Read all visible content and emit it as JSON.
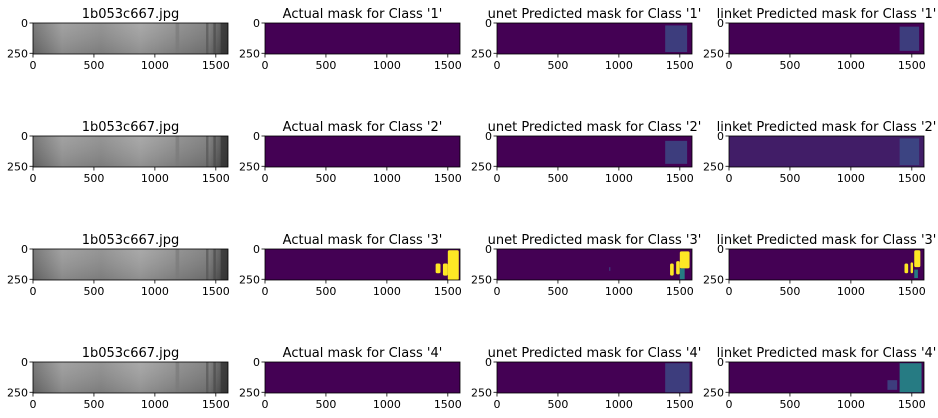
{
  "figure": {
    "rows": 4,
    "cols": 4,
    "colors": {
      "mask_bg": "#440154",
      "mask_fg": "#fde725",
      "mask_faint": "#3b528b",
      "mask_mid": "#21918c",
      "steel_dark": "#5a5a5a",
      "steel_light": "#a8a8a8"
    }
  },
  "chart_data": [
    {
      "type": "heatmap",
      "row": 0,
      "col": 0,
      "kind": "image",
      "title": "1b053c667.jpg",
      "xticks": [
        0,
        500,
        1000,
        1500
      ],
      "yticks": [
        0,
        250
      ],
      "xlim": [
        0,
        1600
      ],
      "ylim": [
        256,
        0
      ],
      "regions": []
    },
    {
      "type": "heatmap",
      "row": 0,
      "col": 1,
      "kind": "mask",
      "title": "Actual mask for Class '1'",
      "xticks": [
        0,
        500,
        1000,
        1500
      ],
      "yticks": [
        0,
        250
      ],
      "xlim": [
        0,
        1600
      ],
      "ylim": [
        256,
        0
      ],
      "regions": []
    },
    {
      "type": "heatmap",
      "row": 0,
      "col": 2,
      "kind": "mask",
      "title": "unet Predicted mask for Class '1'",
      "xticks": [
        0,
        500,
        1000,
        1500
      ],
      "yticks": [
        0,
        250
      ],
      "xlim": [
        0,
        1600
      ],
      "ylim": [
        256,
        0
      ],
      "regions": [
        {
          "x0": 1380,
          "x1": 1560,
          "y0": 20,
          "y1": 240,
          "level": "faint"
        }
      ]
    },
    {
      "type": "heatmap",
      "row": 0,
      "col": 3,
      "kind": "mask",
      "title": "linket Predicted mask for Class '1'",
      "xticks": [
        0,
        500,
        1000,
        1500
      ],
      "yticks": [
        0,
        250
      ],
      "xlim": [
        0,
        1600
      ],
      "ylim": [
        256,
        0
      ],
      "regions": [
        {
          "x0": 1400,
          "x1": 1560,
          "y0": 30,
          "y1": 230,
          "level": "faint"
        }
      ]
    },
    {
      "type": "heatmap",
      "row": 1,
      "col": 0,
      "kind": "image",
      "title": "1b053c667.jpg",
      "xticks": [
        0,
        500,
        1000,
        1500
      ],
      "yticks": [
        0,
        250
      ],
      "xlim": [
        0,
        1600
      ],
      "ylim": [
        256,
        0
      ],
      "regions": []
    },
    {
      "type": "heatmap",
      "row": 1,
      "col": 1,
      "kind": "mask",
      "title": "Actual mask for Class '2'",
      "xticks": [
        0,
        500,
        1000,
        1500
      ],
      "yticks": [
        0,
        250
      ],
      "xlim": [
        0,
        1600
      ],
      "ylim": [
        256,
        0
      ],
      "regions": []
    },
    {
      "type": "heatmap",
      "row": 1,
      "col": 2,
      "kind": "mask",
      "title": "unet Predicted mask for Class '2'",
      "xticks": [
        0,
        500,
        1000,
        1500
      ],
      "yticks": [
        0,
        250
      ],
      "xlim": [
        0,
        1600
      ],
      "ylim": [
        256,
        0
      ],
      "regions": [
        {
          "x0": 1380,
          "x1": 1560,
          "y0": 40,
          "y1": 230,
          "level": "faint"
        }
      ]
    },
    {
      "type": "heatmap",
      "row": 1,
      "col": 3,
      "kind": "mask",
      "title": "linket Predicted mask for Class '2'",
      "xticks": [
        0,
        500,
        1000,
        1500
      ],
      "yticks": [
        0,
        250
      ],
      "xlim": [
        0,
        1600
      ],
      "ylim": [
        256,
        0
      ],
      "regions": [
        {
          "x0": 0,
          "x1": 1600,
          "y0": 0,
          "y1": 256,
          "level": "faint_wide"
        },
        {
          "x0": 1400,
          "x1": 1560,
          "y0": 20,
          "y1": 240,
          "level": "faint"
        }
      ]
    },
    {
      "type": "heatmap",
      "row": 2,
      "col": 0,
      "kind": "image",
      "title": "1b053c667.jpg",
      "xticks": [
        0,
        500,
        1000,
        1500
      ],
      "yticks": [
        0,
        250
      ],
      "xlim": [
        0,
        1600
      ],
      "ylim": [
        256,
        0
      ],
      "regions": []
    },
    {
      "type": "heatmap",
      "row": 2,
      "col": 1,
      "kind": "mask",
      "title": "Actual mask for Class '3'",
      "xticks": [
        0,
        500,
        1000,
        1500
      ],
      "yticks": [
        0,
        250
      ],
      "xlim": [
        0,
        1600
      ],
      "ylim": [
        256,
        0
      ],
      "regions": [
        {
          "x0": 1400,
          "x1": 1440,
          "y0": 120,
          "y1": 200,
          "level": "full"
        },
        {
          "x0": 1460,
          "x1": 1500,
          "y0": 120,
          "y1": 220,
          "level": "full"
        },
        {
          "x0": 1500,
          "x1": 1590,
          "y0": 10,
          "y1": 256,
          "level": "full"
        }
      ]
    },
    {
      "type": "heatmap",
      "row": 2,
      "col": 2,
      "kind": "mask",
      "title": "unet Predicted mask for Class '3'",
      "xticks": [
        0,
        500,
        1000,
        1500
      ],
      "yticks": [
        0,
        250
      ],
      "xlim": [
        0,
        1600
      ],
      "ylim": [
        256,
        0
      ],
      "regions": [
        {
          "x0": 920,
          "x1": 930,
          "y0": 150,
          "y1": 180,
          "level": "faint"
        },
        {
          "x0": 1420,
          "x1": 1450,
          "y0": 120,
          "y1": 220,
          "level": "full"
        },
        {
          "x0": 1470,
          "x1": 1500,
          "y0": 100,
          "y1": 210,
          "level": "full"
        },
        {
          "x0": 1500,
          "x1": 1580,
          "y0": 20,
          "y1": 160,
          "level": "full"
        },
        {
          "x0": 1500,
          "x1": 1540,
          "y0": 160,
          "y1": 250,
          "level": "mid"
        }
      ]
    },
    {
      "type": "heatmap",
      "row": 2,
      "col": 3,
      "kind": "mask",
      "title": "linket Predicted mask for Class '3'",
      "xticks": [
        0,
        500,
        1000,
        1500
      ],
      "yticks": [
        0,
        250
      ],
      "xlim": [
        0,
        1600
      ],
      "ylim": [
        256,
        0
      ],
      "regions": [
        {
          "x0": 1440,
          "x1": 1470,
          "y0": 120,
          "y1": 200,
          "level": "full"
        },
        {
          "x0": 1490,
          "x1": 1510,
          "y0": 110,
          "y1": 200,
          "level": "full"
        },
        {
          "x0": 1520,
          "x1": 1570,
          "y0": 10,
          "y1": 150,
          "level": "full"
        },
        {
          "x0": 1520,
          "x1": 1550,
          "y0": 170,
          "y1": 240,
          "level": "mid"
        }
      ]
    },
    {
      "type": "heatmap",
      "row": 3,
      "col": 0,
      "kind": "image",
      "title": "1b053c667.jpg",
      "xticks": [
        0,
        500,
        1000,
        1500
      ],
      "yticks": [
        0,
        250
      ],
      "xlim": [
        0,
        1600
      ],
      "ylim": [
        256,
        0
      ],
      "regions": []
    },
    {
      "type": "heatmap",
      "row": 3,
      "col": 1,
      "kind": "mask",
      "title": "Actual mask for Class '4'",
      "xticks": [
        0,
        500,
        1000,
        1500
      ],
      "yticks": [
        0,
        250
      ],
      "xlim": [
        0,
        1600
      ],
      "ylim": [
        256,
        0
      ],
      "regions": []
    },
    {
      "type": "heatmap",
      "row": 3,
      "col": 2,
      "kind": "mask",
      "title": "unet Predicted mask for Class '4'",
      "xticks": [
        0,
        500,
        1000,
        1500
      ],
      "yticks": [
        0,
        250
      ],
      "xlim": [
        0,
        1600
      ],
      "ylim": [
        256,
        0
      ],
      "regions": [
        {
          "x0": 1380,
          "x1": 1580,
          "y0": 10,
          "y1": 250,
          "level": "faint"
        }
      ]
    },
    {
      "type": "heatmap",
      "row": 3,
      "col": 3,
      "kind": "mask",
      "title": "linket Predicted mask for Class '4'",
      "xticks": [
        0,
        500,
        1000,
        1500
      ],
      "yticks": [
        0,
        250
      ],
      "xlim": [
        0,
        1600
      ],
      "ylim": [
        256,
        0
      ],
      "regions": [
        {
          "x0": 1300,
          "x1": 1380,
          "y0": 150,
          "y1": 230,
          "level": "faint"
        },
        {
          "x0": 1400,
          "x1": 1580,
          "y0": 10,
          "y1": 250,
          "level": "mid"
        }
      ]
    }
  ]
}
